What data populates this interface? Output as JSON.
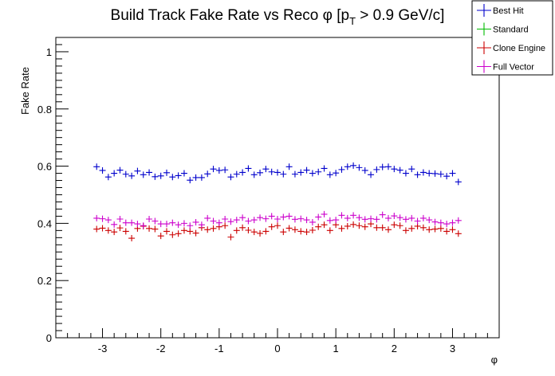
{
  "chart_data": {
    "type": "scatter",
    "title": "Build Track Fake Rate vs Reco φ [p",
    "title_sub": "T",
    "title_tail": " > 0.9 GeV/c]",
    "xlabel": "φ",
    "ylabel": "Fake Rate",
    "xlim": [
      -3.8,
      3.8
    ],
    "ylim": [
      0,
      1.05
    ],
    "x_ticks": [
      -3,
      -2,
      -1,
      0,
      1,
      2,
      3
    ],
    "x_tick_labels": [
      "-3",
      "-2",
      "-1",
      "0",
      "1",
      "2",
      "3"
    ],
    "y_ticks": [
      0,
      0.2,
      0.4,
      0.6,
      0.8,
      1
    ],
    "y_tick_labels": [
      "0",
      "0.2",
      "0.4",
      "0.6",
      "0.8",
      "1"
    ],
    "grid": false,
    "legend_position": "top-right",
    "x": [
      -3.1,
      -3.0,
      -2.9,
      -2.8,
      -2.7,
      -2.6,
      -2.5,
      -2.4,
      -2.3,
      -2.2,
      -2.1,
      -2.0,
      -1.9,
      -1.8,
      -1.7,
      -1.6,
      -1.5,
      -1.4,
      -1.3,
      -1.2,
      -1.1,
      -1.0,
      -0.9,
      -0.8,
      -0.7,
      -0.6,
      -0.5,
      -0.4,
      -0.3,
      -0.2,
      -0.1,
      0.0,
      0.1,
      0.2,
      0.3,
      0.4,
      0.5,
      0.6,
      0.7,
      0.8,
      0.9,
      1.0,
      1.1,
      1.2,
      1.3,
      1.4,
      1.5,
      1.6,
      1.7,
      1.8,
      1.9,
      2.0,
      2.1,
      2.2,
      2.3,
      2.4,
      2.5,
      2.6,
      2.7,
      2.8,
      2.9,
      3.0,
      3.1
    ],
    "series": [
      {
        "name": "Best Hit",
        "color": "#0000cc",
        "values": [
          0.598,
          0.585,
          0.562,
          0.575,
          0.586,
          0.572,
          0.566,
          0.583,
          0.57,
          0.578,
          0.563,
          0.566,
          0.577,
          0.562,
          0.567,
          0.575,
          0.551,
          0.56,
          0.56,
          0.573,
          0.59,
          0.585,
          0.587,
          0.562,
          0.572,
          0.578,
          0.592,
          0.57,
          0.577,
          0.59,
          0.58,
          0.578,
          0.572,
          0.598,
          0.572,
          0.578,
          0.586,
          0.575,
          0.58,
          0.592,
          0.57,
          0.576,
          0.588,
          0.598,
          0.602,
          0.595,
          0.585,
          0.57,
          0.588,
          0.597,
          0.598,
          0.59,
          0.586,
          0.575,
          0.59,
          0.57,
          0.578,
          0.575,
          0.574,
          0.572,
          0.565,
          0.575,
          0.545
        ]
      },
      {
        "name": "Standard",
        "color": "#00bb00",
        "values": []
      },
      {
        "name": "Clone Engine",
        "color": "#cc0000",
        "values": [
          0.38,
          0.383,
          0.375,
          0.37,
          0.384,
          0.372,
          0.348,
          0.382,
          0.39,
          0.382,
          0.38,
          0.356,
          0.372,
          0.36,
          0.364,
          0.375,
          0.372,
          0.366,
          0.385,
          0.378,
          0.382,
          0.388,
          0.392,
          0.352,
          0.375,
          0.385,
          0.376,
          0.37,
          0.365,
          0.372,
          0.388,
          0.392,
          0.37,
          0.383,
          0.378,
          0.372,
          0.37,
          0.376,
          0.388,
          0.395,
          0.375,
          0.395,
          0.382,
          0.39,
          0.396,
          0.392,
          0.388,
          0.398,
          0.385,
          0.385,
          0.378,
          0.395,
          0.392,
          0.375,
          0.382,
          0.39,
          0.385,
          0.378,
          0.38,
          0.382,
          0.372,
          0.378,
          0.364
        ]
      },
      {
        "name": "Full Vector",
        "color": "#cc00cc",
        "values": [
          0.418,
          0.416,
          0.412,
          0.396,
          0.415,
          0.402,
          0.402,
          0.398,
          0.392,
          0.415,
          0.408,
          0.398,
          0.398,
          0.402,
          0.395,
          0.4,
          0.392,
          0.404,
          0.395,
          0.418,
          0.408,
          0.402,
          0.415,
          0.406,
          0.412,
          0.42,
          0.408,
          0.412,
          0.42,
          0.416,
          0.425,
          0.415,
          0.422,
          0.425,
          0.414,
          0.416,
          0.412,
          0.404,
          0.422,
          0.432,
          0.41,
          0.412,
          0.428,
          0.418,
          0.428,
          0.42,
          0.414,
          0.416,
          0.414,
          0.43,
          0.418,
          0.426,
          0.42,
          0.414,
          0.418,
          0.408,
          0.418,
          0.412,
          0.405,
          0.402,
          0.398,
          0.402,
          0.41
        ]
      }
    ]
  }
}
